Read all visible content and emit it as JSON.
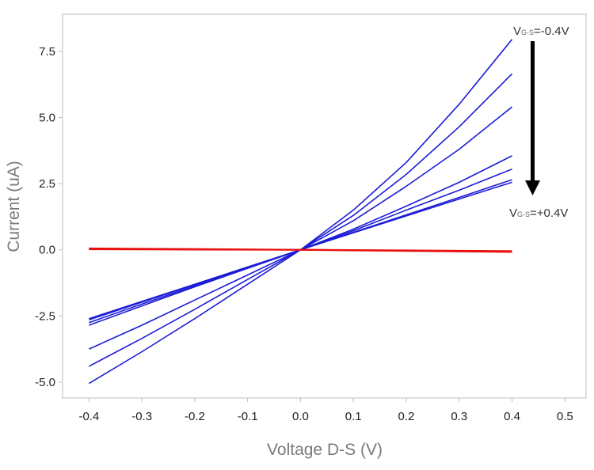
{
  "chart_data": {
    "type": "line",
    "title": "",
    "xlabel": "Voltage D-S (V)",
    "ylabel": "Current (uA)",
    "xlim": [
      -0.45,
      0.54
    ],
    "ylim": [
      -5.6,
      8.9
    ],
    "xticks": [
      -0.4,
      -0.3,
      -0.2,
      -0.1,
      0.0,
      0.1,
      0.2,
      0.3,
      0.4,
      0.5
    ],
    "xtick_labels": [
      "-0.4",
      "-0.3",
      "-0.2",
      "-0.1",
      "0.0",
      "0.1",
      "0.2",
      "0.3",
      "0.4",
      "0.5"
    ],
    "yticks": [
      -5.0,
      -2.5,
      0.0,
      2.5,
      5.0,
      7.5
    ],
    "ytick_labels": [
      "-5.0",
      "-2.5",
      "0.0",
      "2.5",
      "5.0",
      "7.5"
    ],
    "grid": false,
    "legend": "none",
    "series": [
      {
        "color": "#1c1cd6",
        "x": [
          -0.4,
          -0.3,
          -0.2,
          -0.1,
          0.0,
          0.1,
          0.2,
          0.3,
          0.4
        ],
        "y": [
          -5.05,
          -3.85,
          -2.6,
          -1.3,
          0.0,
          1.5,
          3.3,
          5.5,
          7.95
        ]
      },
      {
        "color": "#1c1cd6",
        "x": [
          -0.4,
          -0.3,
          -0.2,
          -0.1,
          0.0,
          0.1,
          0.2,
          0.3,
          0.4
        ],
        "y": [
          -4.4,
          -3.35,
          -2.25,
          -1.12,
          0.0,
          1.3,
          2.85,
          4.65,
          6.65
        ]
      },
      {
        "color": "#1c1cd6",
        "x": [
          -0.4,
          -0.3,
          -0.2,
          -0.1,
          0.0,
          0.1,
          0.2,
          0.3,
          0.4
        ],
        "y": [
          -3.75,
          -2.85,
          -1.9,
          -0.95,
          0.0,
          1.1,
          2.4,
          3.8,
          5.4
        ]
      },
      {
        "color": "#1c1cd6",
        "x": [
          -0.4,
          -0.3,
          -0.2,
          -0.1,
          0.0,
          0.1,
          0.2,
          0.3,
          0.4
        ],
        "y": [
          -2.85,
          -2.12,
          -1.4,
          -0.7,
          0.0,
          0.78,
          1.65,
          2.55,
          3.55
        ]
      },
      {
        "color": "#1c1cd6",
        "x": [
          -0.4,
          -0.3,
          -0.2,
          -0.1,
          0.0,
          0.1,
          0.2,
          0.3,
          0.4
        ],
        "y": [
          -2.75,
          -2.05,
          -1.36,
          -0.68,
          0.0,
          0.72,
          1.5,
          2.25,
          3.05
        ]
      },
      {
        "color": "#1c1cd6",
        "x": [
          -0.4,
          -0.3,
          -0.2,
          -0.1,
          0.0,
          0.1,
          0.2,
          0.3,
          0.4
        ],
        "y": [
          -2.65,
          -1.98,
          -1.32,
          -0.66,
          0.0,
          0.66,
          1.32,
          1.98,
          2.65
        ]
      },
      {
        "color": "#1c1cd6",
        "x": [
          -0.4,
          -0.3,
          -0.2,
          -0.1,
          0.0,
          0.1,
          0.2,
          0.3,
          0.4
        ],
        "y": [
          -2.6,
          -1.95,
          -1.3,
          -0.65,
          0.0,
          0.64,
          1.28,
          1.92,
          2.55
        ]
      },
      {
        "color": "#e81010",
        "x": [
          -0.4,
          0.0,
          0.4
        ],
        "y": [
          0.05,
          0.0,
          -0.08
        ]
      },
      {
        "color": "#e81010",
        "x": [
          -0.4,
          0.0,
          0.4
        ],
        "y": [
          0.02,
          0.0,
          -0.05
        ]
      }
    ],
    "annotations": [
      {
        "main": "V",
        "sub": "G-S",
        "rest": "=-0.4V",
        "position": "top-right"
      },
      {
        "main": "V",
        "sub": "G-S",
        "rest": "=+0.4V",
        "position": "right"
      }
    ],
    "arrow": {
      "color": "#000000",
      "from": "top annotation",
      "to": "bottom annotation",
      "direction": "down"
    }
  }
}
